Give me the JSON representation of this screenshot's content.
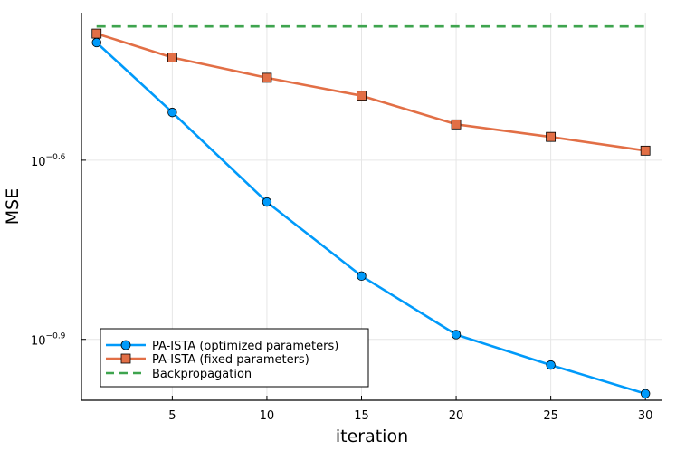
{
  "chart_data": {
    "type": "line",
    "title": "",
    "xlabel": "iteration",
    "ylabel": "MSE",
    "yscale": "log10",
    "x": [
      1,
      5,
      10,
      15,
      20,
      25,
      30
    ],
    "xlim": [
      0.2,
      30.9
    ],
    "ylim_log10": [
      -1.002,
      -0.353
    ],
    "x_ticks": [
      5,
      10,
      15,
      20,
      25,
      30
    ],
    "y_ticks": [
      {
        "base": "10",
        "exponent": "−0.6",
        "log_value": -0.6
      },
      {
        "base": "10",
        "exponent": "−0.9",
        "log_value": -0.9
      }
    ],
    "grid": true,
    "legend_position": "bottom-left",
    "series": [
      {
        "name": "PA-ISTA (optimized parameters)",
        "color": "#009AFA",
        "marker": "circle",
        "line_style": "solid",
        "values_log10": [
          -0.403,
          -0.52,
          -0.67,
          -0.794,
          -0.892,
          -0.943,
          -0.991
        ]
      },
      {
        "name": "PA-ISTA (fixed parameters)",
        "color": "#E26F46",
        "marker": "square",
        "line_style": "solid",
        "values_log10": [
          -0.388,
          -0.428,
          -0.462,
          -0.492,
          -0.54,
          -0.561,
          -0.584
        ]
      },
      {
        "name": "Backpropagation",
        "color": "#3EA44E",
        "marker": "none",
        "line_style": "dashed",
        "values_log10": [
          -0.376,
          -0.376,
          -0.376,
          -0.376,
          -0.376,
          -0.376,
          -0.376
        ]
      }
    ]
  }
}
